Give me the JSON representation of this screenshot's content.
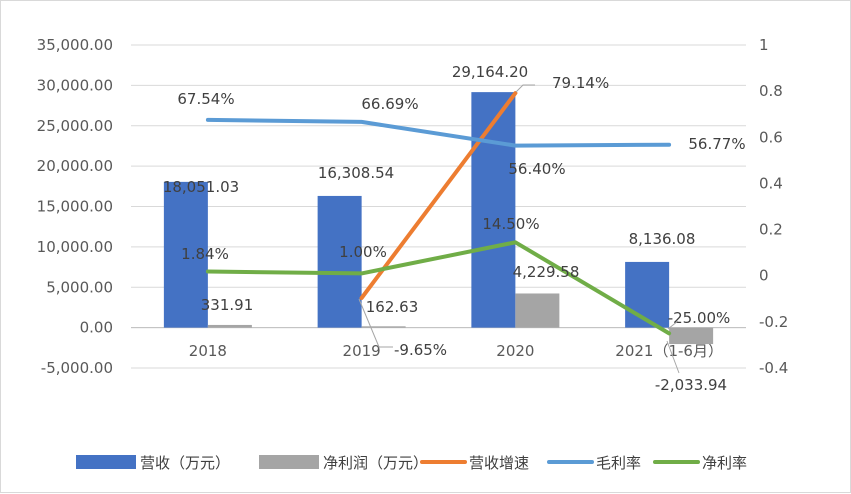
{
  "chart_data": {
    "type": "bar+line",
    "title": "",
    "categories": [
      "2018",
      "2019",
      "2020",
      "2021（1-6月）"
    ],
    "left_axis": {
      "ylim": [
        -5000,
        35000
      ],
      "ticks": [
        35000,
        30000,
        25000,
        20000,
        15000,
        10000,
        5000,
        0,
        -5000
      ],
      "tick_labels": [
        "35,000.00",
        "30,000.00",
        "25,000.00",
        "20,000.00",
        "15,000.00",
        "10,000.00",
        "5,000.00",
        "0.00",
        "-5,000.00"
      ]
    },
    "right_axis": {
      "ylim": [
        -0.4,
        1.0
      ],
      "ticks": [
        1,
        0.8,
        0.6,
        0.4,
        0.2,
        0,
        -0.2,
        -0.4
      ],
      "tick_labels": [
        "1",
        "0.8",
        "0.6",
        "0.4",
        "0.2",
        "0",
        "-0.2",
        "-0.4"
      ]
    },
    "series": [
      {
        "name": "营收（万元）",
        "type": "bar",
        "axis": "left",
        "color": "#4472c4",
        "values": [
          18051.03,
          16308.54,
          29164.2,
          8136.08
        ],
        "labels": [
          "18,051.03",
          "16,308.54",
          "29,164.20",
          "8,136.08"
        ]
      },
      {
        "name": "净利润（万元）",
        "type": "bar",
        "axis": "left",
        "color": "#a5a5a5",
        "values": [
          331.91,
          162.63,
          4229.58,
          -2033.94
        ],
        "labels": [
          "331.91",
          "162.63",
          "4,229.58",
          "-2,033.94"
        ]
      },
      {
        "name": "营收增速",
        "type": "line",
        "axis": "right",
        "color": "#ed7d31",
        "values": [
          null,
          -0.0965,
          0.7914,
          null
        ],
        "labels": [
          "",
          "-9.65%",
          "79.14%",
          ""
        ]
      },
      {
        "name": "毛利率",
        "type": "line",
        "axis": "right",
        "color": "#5b9bd5",
        "values": [
          0.6754,
          0.6669,
          0.564,
          0.5677
        ],
        "labels": [
          "67.54%",
          "66.69%",
          "56.40%",
          "56.77%"
        ]
      },
      {
        "name": "净利率",
        "type": "line",
        "axis": "right",
        "color": "#70ad47",
        "values": [
          0.0184,
          0.01,
          0.145,
          -0.25
        ],
        "labels": [
          "1.84%",
          "1.00%",
          "14.50%",
          "-25.00%"
        ]
      }
    ],
    "legend_position": "bottom"
  }
}
